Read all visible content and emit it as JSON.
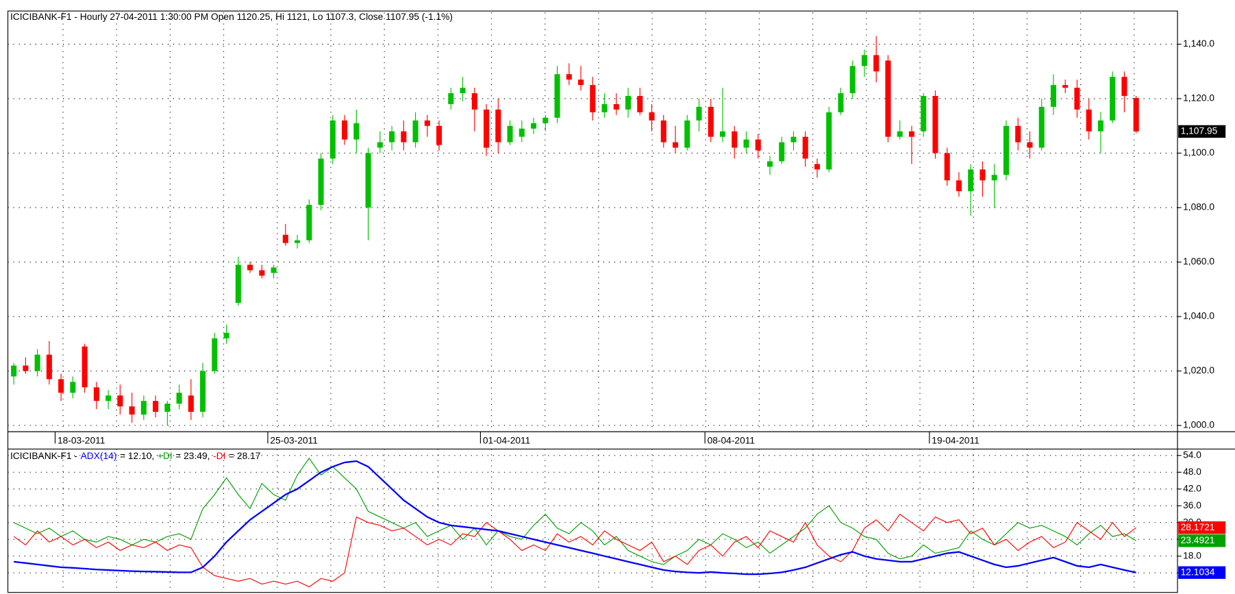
{
  "chart_data": [
    {
      "type": "candlestick",
      "title": "ICICIBANK-F1 - Hourly 27-04-2011 1:30:00 PM Open 1120.25, Hi 1121, Lo 1107.3, Close 1107.95 (-1.1%)",
      "categories": [
        null,
        null,
        null,
        null,
        "18-03-2011",
        null,
        null,
        null,
        null,
        null,
        null,
        null,
        null,
        null,
        null,
        null,
        null,
        null,
        null,
        null,
        null,
        null,
        "25-03-2011",
        null,
        null,
        null,
        null,
        null,
        null,
        null,
        null,
        null,
        null,
        null,
        null,
        null,
        null,
        null,
        null,
        null,
        "01-04-2011",
        null,
        null,
        null,
        null,
        null,
        null,
        null,
        null,
        null,
        null,
        null,
        null,
        null,
        null,
        null,
        null,
        null,
        null,
        "08-04-2011",
        null,
        null,
        null,
        null,
        null,
        null,
        null,
        null,
        null,
        null,
        null,
        null,
        null,
        null,
        null,
        null,
        null,
        null,
        "19-04-2011",
        null,
        null,
        null,
        null,
        null,
        null,
        null,
        null,
        null,
        null,
        null,
        null,
        null,
        null,
        null,
        null,
        null
      ],
      "open": [
        1018,
        1022,
        1020,
        1026,
        1017,
        1012,
        1029,
        1014,
        1009,
        1011,
        1007,
        1004,
        1009,
        1005,
        1008,
        1011,
        1005,
        1020,
        1032,
        1045,
        1059,
        1057,
        1056,
        1070,
        1067,
        1068,
        1081,
        1098,
        1112,
        1105,
        1080,
        1102,
        1104,
        1108,
        1104,
        1112,
        1110,
        1118,
        1122,
        1122,
        1116,
        1116,
        1104,
        1106,
        1109,
        1111,
        1113,
        1129,
        1127,
        1125,
        1115,
        1118,
        1116,
        1121,
        1115,
        1112,
        1104,
        1102,
        1112,
        1117,
        1106,
        1108,
        1102,
        1105,
        1095,
        1097,
        1104,
        1106,
        1096,
        1094,
        1115,
        1122,
        1132,
        1136,
        1134,
        1106,
        1108,
        1108,
        1121,
        1100,
        1090,
        1086,
        1094,
        1090,
        1092,
        1110,
        1104,
        1102,
        1117,
        1125,
        1124,
        1116,
        1108,
        1112,
        1128,
        1120.25
      ],
      "high": [
        1023,
        1025,
        1028,
        1031,
        1019,
        1018,
        1030,
        1016,
        1013,
        1015,
        1012,
        1011,
        1011,
        1009,
        1015,
        1017,
        1023,
        1034,
        1037,
        1062,
        1060,
        1059,
        1059,
        1074,
        1070,
        1083,
        1100,
        1114,
        1114,
        1116,
        1102,
        1108,
        1110,
        1112,
        1115,
        1114,
        1112,
        1124,
        1128,
        1124,
        1118,
        1120,
        1112,
        1112,
        1113,
        1114,
        1132,
        1133,
        1132,
        1128,
        1122,
        1122,
        1124,
        1124,
        1118,
        1114,
        1110,
        1114,
        1120,
        1120,
        1124,
        1110,
        1108,
        1107,
        1099,
        1106,
        1108,
        1108,
        1098,
        1117,
        1124,
        1134,
        1138,
        1143,
        1136,
        1112,
        1110,
        1122,
        1123,
        1102,
        1093,
        1096,
        1097,
        1096,
        1112,
        1113,
        1108,
        1120,
        1129,
        1127,
        1127,
        1120,
        1115,
        1130,
        1130,
        1121
      ],
      "low": [
        1015,
        1019,
        1018,
        1015,
        1009,
        1010,
        1012,
        1006,
        1006,
        1004,
        1001,
        1002,
        1003,
        1000,
        1006,
        1002,
        1003,
        1019,
        1030,
        1044,
        1056,
        1054,
        1054,
        1066,
        1065,
        1067,
        1079,
        1096,
        1103,
        1100,
        1068,
        1100,
        1101,
        1101,
        1102,
        1106,
        1101,
        1116,
        1119,
        1108,
        1099,
        1100,
        1103,
        1104,
        1107,
        1108,
        1111,
        1125,
        1123,
        1112,
        1113,
        1114,
        1113,
        1114,
        1108,
        1102,
        1100,
        1101,
        1108,
        1104,
        1104,
        1098,
        1100,
        1098,
        1092,
        1096,
        1101,
        1095,
        1091,
        1093,
        1114,
        1120,
        1128,
        1126,
        1104,
        1105,
        1096,
        1106,
        1098,
        1088,
        1084,
        1077,
        1084,
        1080,
        1090,
        1101,
        1098,
        1101,
        1114,
        1122,
        1113,
        1105,
        1100,
        1111,
        1115,
        1107.3
      ],
      "close": [
        1022,
        1020,
        1026,
        1017,
        1012,
        1016,
        1014,
        1009,
        1011,
        1007,
        1004,
        1009,
        1005,
        1008,
        1012,
        1005,
        1020,
        1032,
        1034,
        1059,
        1057,
        1055,
        1058,
        1067,
        1068,
        1081,
        1098,
        1112,
        1105,
        1111,
        1100,
        1104,
        1108,
        1104,
        1112,
        1110,
        1103,
        1122,
        1124,
        1116,
        1102,
        1104,
        1110,
        1109,
        1111,
        1113,
        1129,
        1127,
        1125,
        1115,
        1118,
        1116,
        1121,
        1115,
        1112,
        1104,
        1102,
        1112,
        1117,
        1106,
        1108,
        1102,
        1105,
        1101,
        1097,
        1104,
        1106,
        1098,
        1094,
        1115,
        1122,
        1132,
        1136,
        1130,
        1106,
        1108,
        1106,
        1121,
        1100,
        1090,
        1086,
        1094,
        1090,
        1092,
        1110,
        1104,
        1102,
        1117,
        1125,
        1124,
        1116,
        1108,
        1112,
        1128,
        1121,
        1107.95
      ],
      "up_color": "#00c000",
      "down_color": "#ff0000",
      "last_value_label": "1,107.95",
      "ylim": [
        997.7,
        1151.6
      ],
      "yticks": [
        {
          "value": 1140,
          "label": "1,140.0"
        },
        {
          "value": 1120,
          "label": "1,120.0"
        },
        {
          "value": 1100,
          "label": "1,100.0"
        },
        {
          "value": 1080,
          "label": "1,080.0"
        },
        {
          "value": 1060,
          "label": "1,060.0"
        },
        {
          "value": 1040,
          "label": "1,040.0"
        },
        {
          "value": 1020,
          "label": "1,020.0"
        },
        {
          "value": 1000,
          "label": "1,000.0"
        }
      ],
      "grid": true
    },
    {
      "type": "line",
      "title_prefix": "ICICIBANK-F1 -",
      "ylim": [
        5,
        56.3
      ],
      "yticks": [
        {
          "value": 54,
          "label": "54.0"
        },
        {
          "value": 48,
          "label": "48.0"
        },
        {
          "value": 42,
          "label": "42.0"
        },
        {
          "value": 36,
          "label": "36.0"
        },
        {
          "value": 30,
          "label": "30.0"
        },
        {
          "value": 24,
          "label": "24.0"
        },
        {
          "value": 18,
          "label": "18.0"
        },
        {
          "value": 12,
          "label": "12.0"
        }
      ],
      "grid": true,
      "series": [
        {
          "name": "ADX(14)",
          "color": "#0000ff",
          "header_label": "= 12.10,",
          "last_label": "12.1034",
          "values": [
            16,
            15.5,
            15,
            14.5,
            14,
            13.8,
            13.5,
            13.2,
            13,
            12.8,
            12.6,
            12.5,
            12.4,
            12.3,
            12.2,
            12.2,
            14,
            18,
            23,
            27,
            31,
            34,
            37,
            40,
            42,
            45,
            48,
            50,
            51.5,
            52,
            50,
            46,
            42,
            38,
            35,
            32,
            30,
            29,
            28.5,
            28,
            27.5,
            27,
            26,
            25,
            24,
            23,
            22,
            21,
            20,
            19,
            18,
            17,
            16,
            15,
            14,
            13,
            12.5,
            12.2,
            12,
            12.3,
            12,
            11.8,
            11.5,
            11.5,
            11.8,
            12.2,
            13,
            14,
            15.5,
            17,
            18.5,
            19.5,
            18,
            17,
            16.5,
            16,
            16,
            17,
            18,
            19,
            19.5,
            18,
            16.5,
            15,
            14,
            14.5,
            15.5,
            16.5,
            17.5,
            16,
            14.5,
            14,
            15,
            14,
            13,
            12.1034
          ]
        },
        {
          "name": "+DI",
          "color": "#00a000",
          "header_label": "= 23.49,",
          "last_label": "23.4921",
          "values": [
            30,
            28,
            26,
            28,
            25,
            27,
            24,
            23,
            25,
            24,
            22,
            24,
            23,
            25,
            26,
            24,
            35,
            40,
            46,
            40,
            35,
            44,
            40,
            38,
            47,
            53,
            47,
            50,
            46,
            42,
            34,
            32,
            30,
            28,
            30,
            25,
            27,
            29,
            24,
            28,
            22,
            27,
            25,
            24,
            29,
            33,
            28,
            26,
            30,
            27,
            22,
            25,
            20,
            18,
            16,
            15,
            18,
            20,
            24,
            22,
            26,
            24,
            21,
            23,
            19,
            22,
            25,
            28,
            33,
            36,
            30,
            28,
            25,
            24,
            19,
            17,
            18,
            22,
            19,
            20,
            21,
            27,
            24,
            22,
            26,
            30,
            28,
            29,
            27,
            25,
            22,
            26,
            29,
            25,
            26,
            23.4921
          ]
        },
        {
          "name": "-DI",
          "color": "#ff0000",
          "header_label": "= 28.17",
          "last_label": "28.1721",
          "values": [
            25,
            22,
            27,
            23,
            25,
            22,
            24,
            21,
            23,
            20,
            22,
            21,
            23,
            20,
            22,
            21,
            14,
            11,
            10,
            9,
            10,
            8,
            9,
            8,
            9,
            7,
            10,
            9,
            12,
            32,
            30,
            29,
            27,
            28,
            25,
            22,
            24,
            22,
            26,
            25,
            30,
            27,
            24,
            20,
            22,
            20,
            26,
            23,
            25,
            22,
            27,
            24,
            22,
            20,
            23,
            16,
            18,
            15,
            20,
            22,
            18,
            23,
            25,
            21,
            27,
            25,
            23,
            30,
            22,
            18,
            16,
            20,
            28,
            31,
            27,
            33,
            30,
            27,
            32,
            30,
            31,
            26,
            28,
            22,
            24,
            20,
            23,
            25,
            21,
            23,
            30,
            27,
            24,
            30,
            25,
            28.1721
          ]
        }
      ]
    }
  ]
}
